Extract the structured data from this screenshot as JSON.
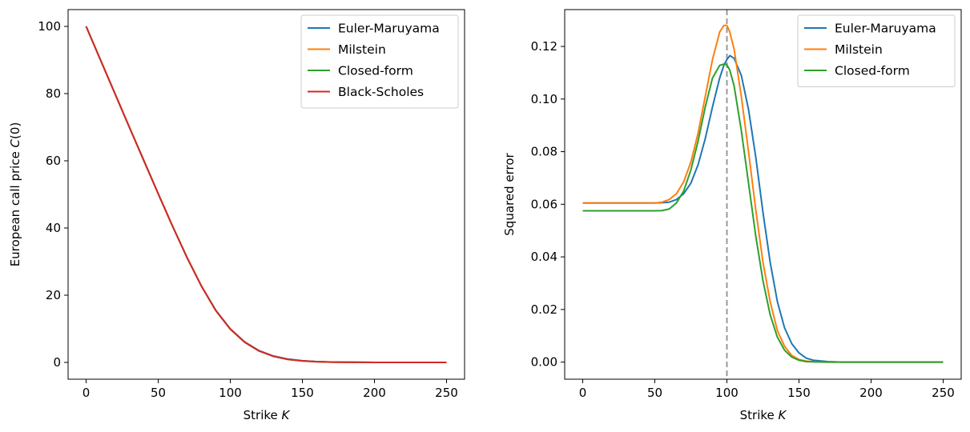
{
  "chart_data": [
    {
      "type": "line",
      "xlabel": "Strike K",
      "xlabel_parts": {
        "text": "Strike ",
        "italic": "K"
      },
      "ylabel": "European call price C(0)",
      "ylabel_parts": {
        "text": "European call price ",
        "italic": "C",
        "suffix": "(0)"
      },
      "xlim": [
        -12.5,
        262.5
      ],
      "ylim": [
        -5,
        105
      ],
      "xticks": [
        0,
        50,
        100,
        150,
        200,
        250
      ],
      "yticks": [
        0,
        20,
        40,
        60,
        80,
        100
      ],
      "xtick_labels": [
        "0",
        "50",
        "100",
        "150",
        "200",
        "250"
      ],
      "ytick_labels": [
        "0",
        "20",
        "40",
        "60",
        "80",
        "100"
      ],
      "legend_position": "top-right",
      "x": [
        0,
        10,
        20,
        30,
        40,
        50,
        60,
        70,
        80,
        90,
        100,
        110,
        120,
        130,
        140,
        150,
        160,
        170,
        180,
        200,
        225,
        250
      ],
      "series": [
        {
          "name": "Euler-Maruyama",
          "color": "#1f77b4",
          "values": [
            100,
            90,
            80,
            70,
            60.1,
            50.2,
            40.5,
            31.2,
            22.7,
            15.5,
            10.0,
            6.1,
            3.5,
            1.9,
            1.0,
            0.5,
            0.25,
            0.12,
            0.06,
            0.01,
            0.0,
            0.0
          ]
        },
        {
          "name": "Milstein",
          "color": "#ff7f0e",
          "values": [
            100,
            90,
            80,
            70,
            60.1,
            50.2,
            40.5,
            31.2,
            22.7,
            15.4,
            9.9,
            6.0,
            3.4,
            1.8,
            0.9,
            0.45,
            0.2,
            0.1,
            0.05,
            0.01,
            0.0,
            0.0
          ]
        },
        {
          "name": "Closed-form",
          "color": "#2ca02c",
          "values": [
            100,
            90,
            80,
            70,
            60.1,
            50.2,
            40.5,
            31.2,
            22.7,
            15.4,
            9.9,
            6.0,
            3.4,
            1.8,
            0.9,
            0.45,
            0.2,
            0.1,
            0.05,
            0.01,
            0.0,
            0.0
          ]
        },
        {
          "name": "Black-Scholes",
          "color": "#d62728",
          "values": [
            100,
            90,
            80,
            70,
            60.1,
            50.2,
            40.5,
            31.2,
            22.7,
            15.4,
            9.9,
            6.0,
            3.4,
            1.8,
            0.9,
            0.45,
            0.2,
            0.1,
            0.05,
            0.01,
            0.0,
            0.0
          ]
        }
      ]
    },
    {
      "type": "line",
      "xlabel": "Strike K",
      "xlabel_parts": {
        "text": "Strike ",
        "italic": "K"
      },
      "ylabel": "Squared error",
      "ylabel_parts": {
        "text": "Squared error",
        "italic": "",
        "suffix": ""
      },
      "xlim": [
        -12.5,
        262.5
      ],
      "ylim": [
        -0.0065,
        0.134
      ],
      "xticks": [
        0,
        50,
        100,
        150,
        200,
        250
      ],
      "yticks": [
        0,
        0.02,
        0.04,
        0.06,
        0.08,
        0.1,
        0.12
      ],
      "xtick_labels": [
        "0",
        "50",
        "100",
        "150",
        "200",
        "250"
      ],
      "ytick_labels": [
        "0.00",
        "0.02",
        "0.04",
        "0.06",
        "0.08",
        "0.10",
        "0.12"
      ],
      "legend_position": "top-right",
      "vline": {
        "x": 100,
        "color": "#999999",
        "style": "dashed"
      },
      "x": [
        0,
        40,
        50,
        55,
        60,
        65,
        70,
        75,
        80,
        85,
        90,
        95,
        98,
        100,
        102,
        105,
        110,
        115,
        120,
        125,
        130,
        135,
        140,
        145,
        150,
        155,
        160,
        170,
        180,
        200,
        250
      ],
      "series": [
        {
          "name": "Euler-Maruyama",
          "color": "#1f77b4",
          "values": [
            0.0605,
            0.0605,
            0.0605,
            0.0606,
            0.0608,
            0.0618,
            0.064,
            0.068,
            0.075,
            0.085,
            0.097,
            0.108,
            0.113,
            0.115,
            0.1165,
            0.1155,
            0.109,
            0.096,
            0.078,
            0.057,
            0.038,
            0.023,
            0.013,
            0.007,
            0.0035,
            0.0015,
            0.0007,
            0.0002,
            0.0,
            0.0,
            0.0
          ]
        },
        {
          "name": "Milstein",
          "color": "#ff7f0e",
          "values": [
            0.0605,
            0.0605,
            0.0605,
            0.0608,
            0.0618,
            0.064,
            0.0685,
            0.076,
            0.087,
            0.101,
            0.115,
            0.1255,
            0.128,
            0.128,
            0.1255,
            0.119,
            0.101,
            0.08,
            0.058,
            0.038,
            0.023,
            0.012,
            0.006,
            0.0025,
            0.001,
            0.0004,
            0.0001,
            0.0,
            0.0,
            0.0,
            0.0
          ]
        },
        {
          "name": "Closed-form",
          "color": "#2ca02c",
          "values": [
            0.0575,
            0.0575,
            0.0575,
            0.0576,
            0.0582,
            0.0605,
            0.065,
            0.073,
            0.084,
            0.097,
            0.108,
            0.1128,
            0.1133,
            0.113,
            0.111,
            0.105,
            0.088,
            0.068,
            0.048,
            0.031,
            0.018,
            0.0095,
            0.0045,
            0.0019,
            0.0007,
            0.0002,
            0.0001,
            0.0,
            0.0,
            0.0,
            0.0
          ]
        }
      ]
    }
  ]
}
